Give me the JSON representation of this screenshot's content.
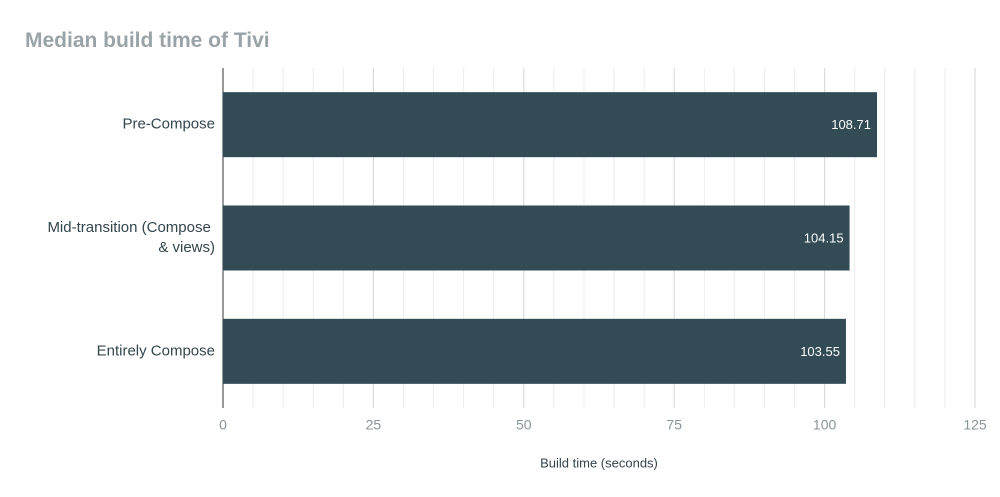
{
  "chart_data": {
    "type": "bar",
    "orientation": "horizontal",
    "title": "Median build time of Tivi",
    "categories": [
      "Pre-Compose",
      "Mid-transition (Compose & views)",
      "Entirely Compose"
    ],
    "values": [
      108.71,
      104.15,
      103.55
    ],
    "color": "#324b55",
    "x_label": "Build time (seconds)",
    "xlim": [
      0,
      125
    ],
    "xticks": [
      0,
      25,
      50,
      75,
      100,
      125
    ],
    "grid": true,
    "data_labels": true
  }
}
